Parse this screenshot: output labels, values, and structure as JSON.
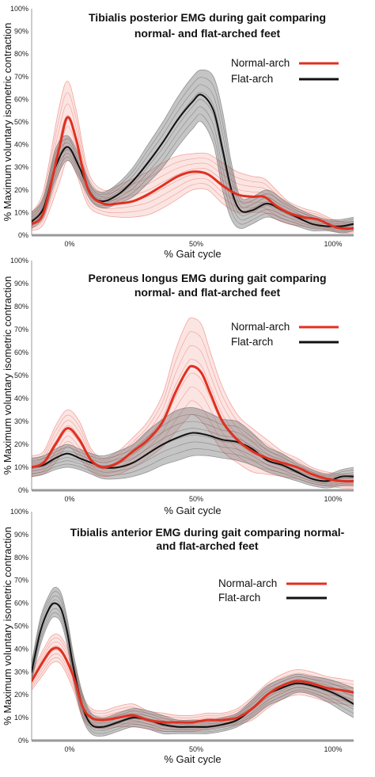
{
  "chart_data": [
    {
      "type": "line",
      "title_lines": [
        "Tibialis posterior EMG during gait comparing",
        "normal- and flat-arched feet"
      ],
      "xlabel": "% Gait cycle",
      "ylabel": "% Maximum voluntary isometric contraction",
      "xlim": [
        -4,
        104
      ],
      "ylim": [
        0,
        100
      ],
      "xticks": [
        "0%",
        "50%",
        "100%"
      ],
      "yticks": [
        "0%",
        "10%",
        "20%",
        "30%",
        "40%",
        "50%",
        "60%",
        "70%",
        "80%",
        "90%",
        "100%"
      ],
      "legend": "top-right",
      "series": [
        {
          "name": "Normal-arch",
          "color": "#e03020",
          "x": [
            -4,
            0,
            5,
            8,
            11,
            15,
            20,
            25,
            30,
            35,
            40,
            45,
            50,
            55,
            60,
            65,
            70,
            74,
            78,
            82,
            87,
            92,
            97,
            100,
            104
          ],
          "y": [
            5,
            10,
            37,
            52,
            42,
            20,
            14,
            14,
            15,
            18,
            22,
            26,
            28,
            27,
            22,
            18,
            17,
            17,
            13,
            10,
            8,
            7,
            4,
            3,
            3
          ],
          "upper": [
            10,
            20,
            55,
            68,
            55,
            28,
            20,
            22,
            25,
            28,
            32,
            35,
            36,
            36,
            32,
            28,
            26,
            25,
            20,
            15,
            12,
            10,
            7,
            6,
            6
          ],
          "lower": [
            2,
            5,
            22,
            33,
            27,
            13,
            9,
            8,
            8,
            9,
            12,
            16,
            20,
            20,
            14,
            10,
            10,
            10,
            7,
            5,
            4,
            3,
            2,
            1,
            1
          ]
        },
        {
          "name": "Flat-arch",
          "color": "#111111",
          "x": [
            -4,
            0,
            4,
            8,
            12,
            16,
            20,
            25,
            30,
            35,
            40,
            45,
            50,
            53,
            57,
            60,
            63,
            66,
            70,
            75,
            80,
            85,
            90,
            95,
            100,
            104
          ],
          "y": [
            6,
            12,
            30,
            39,
            30,
            18,
            15,
            18,
            24,
            32,
            41,
            51,
            59,
            62,
            55,
            38,
            20,
            11,
            11,
            14,
            11,
            8,
            5,
            4,
            4,
            5
          ],
          "upper": [
            10,
            17,
            38,
            44,
            35,
            22,
            19,
            23,
            30,
            40,
            50,
            61,
            70,
            73,
            70,
            55,
            32,
            17,
            17,
            20,
            16,
            12,
            9,
            7,
            7,
            8
          ],
          "lower": [
            3,
            8,
            24,
            33,
            25,
            15,
            12,
            14,
            17,
            23,
            30,
            39,
            47,
            50,
            40,
            20,
            7,
            3,
            5,
            8,
            6,
            4,
            2,
            2,
            1,
            2
          ]
        }
      ]
    },
    {
      "type": "line",
      "title_lines": [
        "Peroneus longus EMG during gait comparing",
        "normal- and flat-arched feet"
      ],
      "xlabel": "% Gait cycle",
      "ylabel": "% Maximum voluntary isometric contraction",
      "xlim": [
        -4,
        104
      ],
      "ylim": [
        0,
        100
      ],
      "xticks": [
        "0%",
        "50%",
        "100%"
      ],
      "yticks": [
        "0%",
        "10%",
        "20%",
        "30%",
        "40%",
        "50%",
        "60%",
        "70%",
        "80%",
        "90%",
        "100%"
      ],
      "legend": "top-right",
      "series": [
        {
          "name": "Normal-arch",
          "color": "#e03020",
          "x": [
            -4,
            0,
            4,
            8,
            12,
            16,
            20,
            25,
            30,
            35,
            40,
            44,
            48,
            50,
            53,
            56,
            60,
            65,
            70,
            75,
            80,
            85,
            90,
            95,
            100,
            104
          ],
          "y": [
            10,
            12,
            20,
            27,
            22,
            13,
            10,
            12,
            17,
            22,
            30,
            42,
            52,
            54,
            51,
            42,
            30,
            22,
            17,
            14,
            12,
            10,
            7,
            5,
            4,
            4
          ],
          "upper": [
            15,
            17,
            28,
            35,
            30,
            18,
            14,
            17,
            23,
            30,
            42,
            60,
            73,
            75,
            72,
            60,
            45,
            33,
            27,
            22,
            17,
            14,
            10,
            8,
            7,
            7
          ],
          "lower": [
            6,
            7,
            12,
            19,
            14,
            8,
            6,
            7,
            10,
            14,
            19,
            25,
            31,
            33,
            30,
            25,
            17,
            12,
            8,
            7,
            6,
            5,
            3,
            2,
            1,
            1
          ]
        },
        {
          "name": "Flat-arch",
          "color": "#111111",
          "x": [
            -4,
            0,
            4,
            8,
            12,
            16,
            20,
            25,
            30,
            35,
            40,
            45,
            50,
            55,
            60,
            65,
            70,
            75,
            80,
            85,
            90,
            95,
            100,
            104
          ],
          "y": [
            10,
            11,
            14,
            16,
            14,
            12,
            10,
            10,
            12,
            16,
            20,
            23,
            25,
            24,
            22,
            21,
            18,
            13,
            11,
            8,
            5,
            4,
            6,
            6
          ],
          "upper": [
            14,
            15,
            18,
            20,
            18,
            16,
            15,
            17,
            20,
            26,
            31,
            35,
            36,
            34,
            31,
            30,
            25,
            19,
            16,
            12,
            9,
            7,
            9,
            10
          ],
          "lower": [
            6,
            7,
            9,
            10,
            9,
            7,
            5,
            5,
            6,
            8,
            11,
            13,
            15,
            15,
            14,
            13,
            11,
            8,
            6,
            4,
            2,
            1,
            2,
            2
          ]
        }
      ]
    },
    {
      "type": "line",
      "title_lines": [
        "Tibialis anterior EMG during gait comparing normal-",
        "and flat-arched feet"
      ],
      "xlabel": "% Gait cycle",
      "ylabel": "% Maximum voluntary isometric contraction",
      "xlim": [
        -4,
        104
      ],
      "ylim": [
        0,
        100
      ],
      "xticks": [
        "0%",
        "50%",
        "100%"
      ],
      "yticks": [
        "0%",
        "10%",
        "20%",
        "30%",
        "40%",
        "50%",
        "60%",
        "70%",
        "80%",
        "90%",
        "100%"
      ],
      "legend": "top-right",
      "series": [
        {
          "name": "Normal-arch",
          "color": "#e03020",
          "x": [
            -4,
            0,
            3,
            6,
            10,
            13,
            16,
            20,
            25,
            30,
            35,
            40,
            45,
            50,
            55,
            60,
            65,
            70,
            75,
            80,
            85,
            90,
            95,
            100,
            104
          ],
          "y": [
            26,
            35,
            40,
            39,
            28,
            15,
            10,
            9,
            10,
            11,
            9,
            8,
            8,
            8,
            9,
            9,
            10,
            14,
            20,
            24,
            26,
            25,
            23,
            22,
            21
          ],
          "upper": [
            30,
            40,
            46,
            45,
            34,
            20,
            14,
            13,
            15,
            16,
            13,
            12,
            11,
            11,
            12,
            12,
            14,
            19,
            25,
            29,
            31,
            30,
            28,
            27,
            26
          ],
          "lower": [
            22,
            29,
            34,
            33,
            22,
            10,
            6,
            5,
            6,
            6,
            5,
            4,
            4,
            4,
            5,
            6,
            7,
            9,
            14,
            18,
            20,
            19,
            17,
            16,
            15
          ]
        },
        {
          "name": "Flat-arch",
          "color": "#111111",
          "x": [
            -4,
            -1,
            2,
            4,
            6,
            8,
            10,
            13,
            16,
            20,
            25,
            30,
            35,
            40,
            45,
            50,
            55,
            60,
            65,
            70,
            75,
            80,
            85,
            90,
            95,
            100,
            104
          ],
          "y": [
            30,
            48,
            58,
            60,
            57,
            47,
            32,
            15,
            7,
            6,
            8,
            10,
            9,
            7,
            6,
            6,
            6,
            7,
            9,
            14,
            20,
            23,
            25,
            24,
            22,
            19,
            16
          ],
          "upper": [
            34,
            54,
            64,
            67,
            64,
            53,
            38,
            21,
            12,
            10,
            12,
            14,
            13,
            11,
            9,
            9,
            9,
            10,
            12,
            18,
            24,
            27,
            29,
            28,
            27,
            25,
            23
          ],
          "lower": [
            26,
            42,
            52,
            54,
            51,
            41,
            26,
            10,
            3,
            2,
            4,
            6,
            5,
            3,
            3,
            3,
            3,
            4,
            6,
            10,
            15,
            18,
            21,
            20,
            17,
            13,
            10
          ]
        }
      ]
    }
  ]
}
